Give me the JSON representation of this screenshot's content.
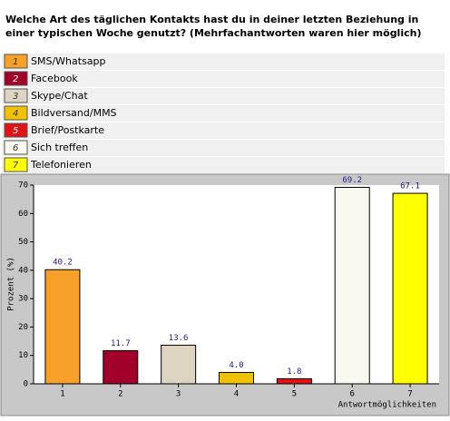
{
  "chart_data": {
    "type": "bar",
    "title": "Welche Art des täglichen Kontakts hast du in deiner letzten Beziehung in einer typischen Woche genutzt? (Mehrfachantworten waren hier möglich)",
    "categories": [
      "1",
      "2",
      "3",
      "4",
      "5",
      "6",
      "7"
    ],
    "labels": [
      "SMS/Whatsapp",
      "Facebook",
      "Skype/Chat",
      "Bildversand/MMS",
      "Brief/Postkarte",
      "Sich treffen",
      "Telefonieren"
    ],
    "colors": [
      "#f7a12a",
      "#a0002a",
      "#ddd4c2",
      "#f2c200",
      "#e01414",
      "#f9f9ef",
      "#ffff00"
    ],
    "values": [
      40.2,
      11.7,
      13.6,
      4,
      1.8,
      69.2,
      67.1
    ],
    "value_labels": [
      "40.2",
      "11.7",
      "13.6",
      "4.0",
      "1.8",
      "69.2",
      "67.1"
    ],
    "ylabel": "Prozent (%)",
    "xlabel": "Antwortmöglichkeiten",
    "ylim": [
      0,
      70
    ],
    "yticks": [
      0,
      10,
      20,
      30,
      40,
      50,
      60,
      70
    ],
    "grid": false
  }
}
